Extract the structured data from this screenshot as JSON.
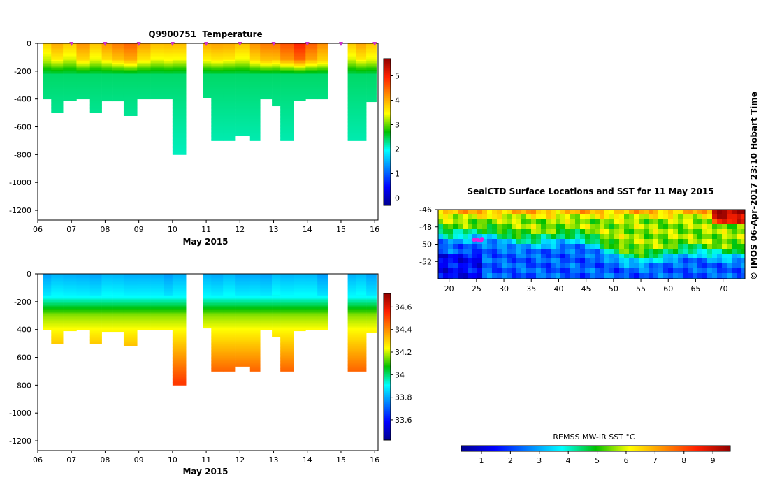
{
  "copyright": "© IMOS 06-Apr-2017 23:10 Hobart Time",
  "chart_data": [
    {
      "type": "heatmap",
      "title": "Q9900751  Temperature",
      "xlabel": "May 2015",
      "ylabel": "",
      "x_ticks": [
        "06",
        "07",
        "08",
        "09",
        "10",
        "11",
        "12",
        "13",
        "14",
        "15",
        "16"
      ],
      "xlim": [
        6,
        16.1
      ],
      "ylim": [
        -1270,
        0
      ],
      "y_ticks": [
        0,
        -200,
        -400,
        -600,
        -800,
        -1000,
        -1200
      ],
      "y_tick_labels": [
        "0",
        "-200",
        "-400",
        "-600",
        "-800",
        "-1000",
        "-1200"
      ],
      "colorbar": {
        "min": -0.3,
        "max": 5.7,
        "ticks": [
          0,
          1,
          2,
          3,
          4,
          5
        ],
        "tick_labels": [
          "0",
          "1",
          "2",
          "3",
          "4",
          "5"
        ]
      },
      "profile_markers_x": [
        7.0,
        8.0,
        9.0,
        10.0,
        11.0,
        12.0,
        13.0,
        14.0,
        15.0,
        16.0
      ],
      "profile_marker_color": "#cc33cc",
      "profiles": [
        {
          "x0": 6.15,
          "x1": 6.4,
          "max_depth": 400,
          "surface": 3.8
        },
        {
          "x0": 6.4,
          "x1": 6.75,
          "max_depth": 500,
          "surface": 4.0
        },
        {
          "x0": 6.75,
          "x1": 7.15,
          "max_depth": 410,
          "surface": 3.8
        },
        {
          "x0": 7.15,
          "x1": 7.55,
          "max_depth": 400,
          "surface": 4.2
        },
        {
          "x0": 7.55,
          "x1": 7.9,
          "max_depth": 500,
          "surface": 3.9
        },
        {
          "x0": 7.9,
          "x1": 8.2,
          "max_depth": 415,
          "surface": 4.1
        },
        {
          "x0": 8.2,
          "x1": 8.55,
          "max_depth": 415,
          "surface": 4.3
        },
        {
          "x0": 8.55,
          "x1": 8.95,
          "max_depth": 520,
          "surface": 4.5
        },
        {
          "x0": 8.95,
          "x1": 9.35,
          "max_depth": 400,
          "surface": 4.1
        },
        {
          "x0": 9.35,
          "x1": 9.75,
          "max_depth": 400,
          "surface": 3.9
        },
        {
          "x0": 9.75,
          "x1": 10.0,
          "max_depth": 400,
          "surface": 4.0
        },
        {
          "x0": 10.0,
          "x1": 10.4,
          "max_depth": 800,
          "surface": 3.9
        },
        {
          "x0": 10.9,
          "x1": 11.15,
          "max_depth": 390,
          "surface": 4.0
        },
        {
          "x0": 11.15,
          "x1": 11.5,
          "max_depth": 700,
          "surface": 4.1
        },
        {
          "x0": 11.5,
          "x1": 11.85,
          "max_depth": 700,
          "surface": 4.0
        },
        {
          "x0": 11.85,
          "x1": 12.3,
          "max_depth": 665,
          "surface": 3.9
        },
        {
          "x0": 12.3,
          "x1": 12.6,
          "max_depth": 700,
          "surface": 4.2
        },
        {
          "x0": 12.6,
          "x1": 12.95,
          "max_depth": 400,
          "surface": 4.4
        },
        {
          "x0": 12.95,
          "x1": 13.2,
          "max_depth": 450,
          "surface": 4.3
        },
        {
          "x0": 13.2,
          "x1": 13.6,
          "max_depth": 700,
          "surface": 4.6
        },
        {
          "x0": 13.6,
          "x1": 13.95,
          "max_depth": 410,
          "surface": 4.9
        },
        {
          "x0": 13.95,
          "x1": 14.3,
          "max_depth": 400,
          "surface": 4.5
        },
        {
          "x0": 14.3,
          "x1": 14.6,
          "max_depth": 400,
          "surface": 4.3
        },
        {
          "x0": 15.2,
          "x1": 15.45,
          "max_depth": 700,
          "surface": 3.8
        },
        {
          "x0": 15.45,
          "x1": 15.75,
          "max_depth": 700,
          "surface": 4.0
        },
        {
          "x0": 15.75,
          "x1": 16.05,
          "max_depth": 420,
          "surface": 3.9
        }
      ]
    },
    {
      "type": "heatmap",
      "title": "",
      "xlabel": "May 2015",
      "ylabel": "",
      "x_ticks": [
        "06",
        "07",
        "08",
        "09",
        "10",
        "11",
        "12",
        "13",
        "14",
        "15",
        "16"
      ],
      "xlim": [
        6,
        16.1
      ],
      "ylim": [
        -1270,
        0
      ],
      "y_ticks": [
        0,
        -200,
        -400,
        -600,
        -800,
        -1000,
        -1200
      ],
      "y_tick_labels": [
        "0",
        "-200",
        "-400",
        "-600",
        "-800",
        "-1000",
        "-1200"
      ],
      "colorbar": {
        "min": 33.42,
        "max": 34.72,
        "ticks": [
          33.6,
          33.8,
          34.0,
          34.2,
          34.4,
          34.6
        ],
        "tick_labels": [
          "33.6",
          "33.8",
          "34",
          "34.2",
          "34.4",
          "34.6"
        ]
      },
      "profiles": [
        {
          "x0": 6.15,
          "x1": 6.4,
          "max_depth": 400
        },
        {
          "x0": 6.4,
          "x1": 6.75,
          "max_depth": 500
        },
        {
          "x0": 6.75,
          "x1": 7.15,
          "max_depth": 410
        },
        {
          "x0": 7.15,
          "x1": 7.55,
          "max_depth": 400
        },
        {
          "x0": 7.55,
          "x1": 7.9,
          "max_depth": 500
        },
        {
          "x0": 7.9,
          "x1": 8.2,
          "max_depth": 415
        },
        {
          "x0": 8.2,
          "x1": 8.55,
          "max_depth": 415
        },
        {
          "x0": 8.55,
          "x1": 8.95,
          "max_depth": 520
        },
        {
          "x0": 8.95,
          "x1": 9.35,
          "max_depth": 400
        },
        {
          "x0": 9.35,
          "x1": 9.75,
          "max_depth": 400
        },
        {
          "x0": 9.75,
          "x1": 10.0,
          "max_depth": 400
        },
        {
          "x0": 10.0,
          "x1": 10.4,
          "max_depth": 800
        },
        {
          "x0": 10.9,
          "x1": 11.15,
          "max_depth": 390
        },
        {
          "x0": 11.15,
          "x1": 11.5,
          "max_depth": 700
        },
        {
          "x0": 11.5,
          "x1": 11.85,
          "max_depth": 700
        },
        {
          "x0": 11.85,
          "x1": 12.3,
          "max_depth": 665
        },
        {
          "x0": 12.3,
          "x1": 12.6,
          "max_depth": 700
        },
        {
          "x0": 12.6,
          "x1": 12.95,
          "max_depth": 400
        },
        {
          "x0": 12.95,
          "x1": 13.2,
          "max_depth": 450
        },
        {
          "x0": 13.2,
          "x1": 13.6,
          "max_depth": 700
        },
        {
          "x0": 13.6,
          "x1": 13.95,
          "max_depth": 410
        },
        {
          "x0": 13.95,
          "x1": 14.3,
          "max_depth": 400
        },
        {
          "x0": 14.3,
          "x1": 14.6,
          "max_depth": 400
        },
        {
          "x0": 15.2,
          "x1": 15.45,
          "max_depth": 700
        },
        {
          "x0": 15.45,
          "x1": 15.75,
          "max_depth": 700
        },
        {
          "x0": 15.75,
          "x1": 16.05,
          "max_depth": 420
        }
      ]
    },
    {
      "type": "heatmap",
      "title": "SealCTD Surface Locations and SST for 11 May 2015",
      "xlabel": "",
      "ylabel": "",
      "x_ticks": [
        20,
        25,
        30,
        35,
        40,
        45,
        50,
        55,
        60,
        65,
        70
      ],
      "x_tick_labels": [
        "20",
        "25",
        "30",
        "35",
        "40",
        "45",
        "50",
        "55",
        "60",
        "65",
        "70"
      ],
      "xlim": [
        18,
        74
      ],
      "ylim": [
        -54,
        -46
      ],
      "y_ticks": [
        -46,
        -48,
        -50,
        -52
      ],
      "y_tick_labels": [
        "-46",
        "-48",
        "-50",
        "-52"
      ],
      "seal_track_color": "#e020e0",
      "seal_locations": [
        [
          24.6,
          -49.5
        ],
        [
          25.2,
          -49.5
        ],
        [
          25.8,
          -49.6
        ],
        [
          26.0,
          -49.4
        ]
      ],
      "colorbar": {
        "label": "REMSS MW-IR SST °C",
        "min": 0.3,
        "max": 9.6,
        "ticks": [
          1,
          2,
          3,
          4,
          5,
          6,
          7,
          8,
          9
        ],
        "tick_labels": [
          "1",
          "2",
          "3",
          "4",
          "5",
          "6",
          "7",
          "8",
          "9"
        ]
      }
    }
  ]
}
